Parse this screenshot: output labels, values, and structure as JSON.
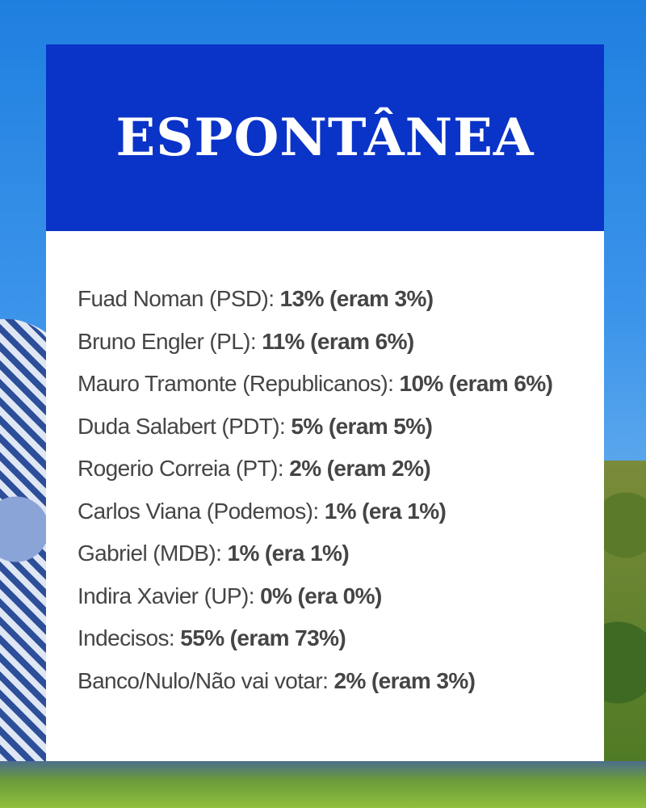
{
  "title": "ESPONTÂNEA",
  "rows": [
    {
      "label": "Fuad Noman (PSD):",
      "value": "13% (eram 3%)"
    },
    {
      "label": "Bruno Engler (PL):",
      "value": "11% (eram 6%)"
    },
    {
      "label": "Mauro Tramonte (Republicanos):",
      "value": "10% (eram 6%)"
    },
    {
      "label": "Duda Salabert (PDT):",
      "value": "5% (eram 5%)"
    },
    {
      "label": "Rogerio Correia (PT):",
      "value": "2% (eram 2%)"
    },
    {
      "label": "Carlos Viana (Podemos):",
      "value": "1% (era 1%)"
    },
    {
      "label": "Gabriel (MDB):",
      "value": "1% (era 1%)"
    },
    {
      "label": "Indira Xavier (UP):",
      "value": "0% (era 0%)"
    },
    {
      "label": "Indecisos:",
      "value": "55% (eram 73%)"
    },
    {
      "label": "Banco/Nulo/Não vai votar:",
      "value": "2% (eram 3%)"
    }
  ],
  "colors": {
    "header": "#0a33c8",
    "text": "#454545"
  }
}
